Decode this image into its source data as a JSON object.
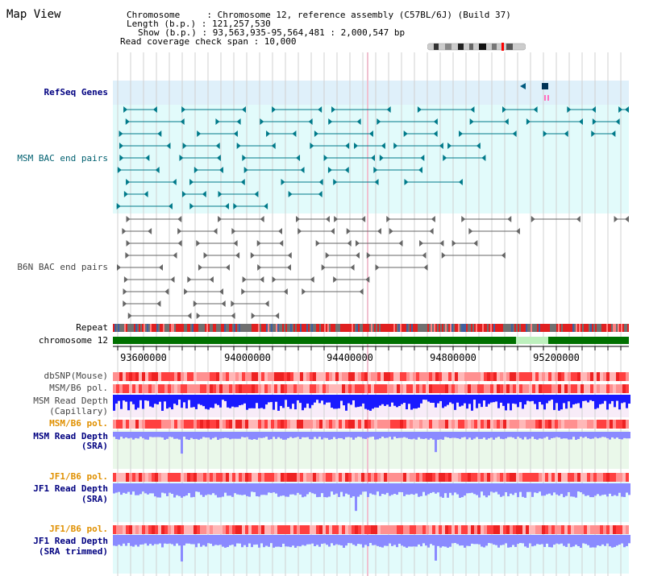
{
  "page": {
    "title": "Map View"
  },
  "info": {
    "chromosome_line": "Chromosome     : Chromosome 12, reference assembly (C57BL/6J) (Build 37)",
    "length_line": "Length (b.p.) : 121,257,530",
    "show_line": "Show (b.p.) : 93,563,935-95,564,481 : 2,000,547 bp",
    "coverage_line": "Read coverage check span : 10,000"
  },
  "colors": {
    "refseq": "#005a80",
    "msm": "#007a8a",
    "b6n": "#666666",
    "grid": "#d0d0d0",
    "chrom_green": "#007000",
    "depth_blue": "#1a1aff",
    "depth_light": "#8a8aff",
    "pol_red": "#ff0000",
    "orange_label": "#e09000",
    "navy_label": "#000080"
  },
  "tracks": {
    "refseq_genes": "RefSeq Genes",
    "msm_bac": "MSM BAC end pairs",
    "b6n_bac": "B6N BAC end pairs",
    "repeat": "Repeat",
    "chromosome": "chromosome 12",
    "dbsnp": "dbSNP(Mouse)",
    "msm_b6_pol_1": "MSM/B6 pol.",
    "msm_read_depth_cap_1": "MSM Read Depth",
    "msm_read_depth_cap_2": "(Capillary)",
    "msm_b6_pol_2": "MSM/B6 pol.",
    "msm_read_depth_sra_1": "MSM Read Depth",
    "msm_read_depth_sra_2": "(SRA)",
    "jf1_b6_pol_1": "JF1/B6 pol.",
    "jf1_read_depth_sra_1": "JF1 Read Depth",
    "jf1_read_depth_sra_2": "(SRA)",
    "jf1_b6_pol_2": "JF1/B6 pol.",
    "jf1_read_depth_trim_1": "JF1 Read Depth",
    "jf1_read_depth_trim_2": "(SRA trimmed)"
  },
  "axis": {
    "ticks": [
      "93600000",
      "94000000",
      "94400000",
      "94800000",
      "95200000"
    ]
  }
}
